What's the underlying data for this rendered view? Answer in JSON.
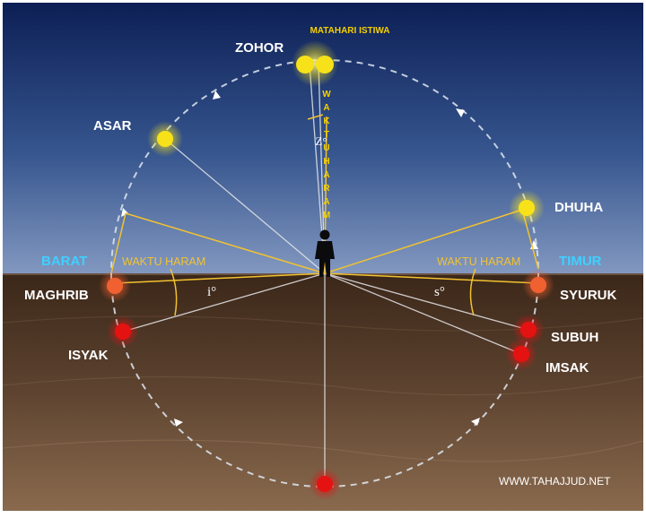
{
  "title": "MATAHARI ISTIWA",
  "vertical_label": "WAKTU HARAM",
  "zenith_angle": "Z°",
  "sides": {
    "west": "BARAT",
    "east": "TIMUR"
  },
  "haram_left": "WAKTU HARAM",
  "haram_right": "WAKTU HARAM",
  "angles": {
    "west": "i°",
    "east": "s°"
  },
  "prayers": {
    "zohor": "ZOHOR",
    "asar": "ASAR",
    "maghrib": "MAGHRIB",
    "isyak": "ISYAK",
    "dhuha": "DHUHA",
    "syuruk": "SYURUK",
    "subuh": "SUBUH",
    "imsak": "IMSAK"
  },
  "credit": "WWW.TAHAJJUD.NET",
  "colors": {
    "sky_top": "#0c1f55",
    "sky_bottom": "#7d94bb",
    "ground_top": "#3f2a1c",
    "ground_bottom": "#8a6a4e",
    "sun_yellow": "#f7e21a",
    "sun_red": "#e51212",
    "sun_orange": "#f06030",
    "guide_yellow": "#f2c230"
  }
}
